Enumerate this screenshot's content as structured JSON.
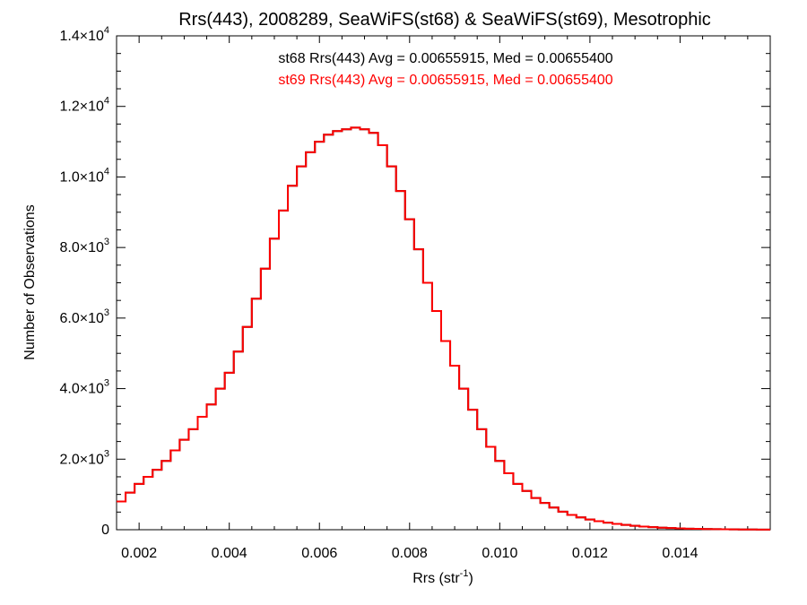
{
  "chart_data": {
    "type": "histogram",
    "title": "Rrs(443), 2008289, SeaWiFS(st68) & SeaWiFS(st69), Mesotrophic",
    "xlabel": "Rrs (str",
    "xlabel_sup": "-1",
    "xlabel_tail": ")",
    "ylabel": "Number of Observations",
    "xlim": [
      0.0015,
      0.016
    ],
    "ylim": [
      0,
      14000
    ],
    "x_ticks": [
      0.002,
      0.004,
      0.006,
      0.008,
      0.01,
      0.012,
      0.014
    ],
    "x_tick_labels": [
      "0.002",
      "0.004",
      "0.006",
      "0.008",
      "0.010",
      "0.012",
      "0.014"
    ],
    "y_ticks": [
      {
        "value": 0,
        "mant": "0",
        "exp": ""
      },
      {
        "value": 2000,
        "mant": "2.0×10",
        "exp": "3"
      },
      {
        "value": 4000,
        "mant": "4.0×10",
        "exp": "3"
      },
      {
        "value": 6000,
        "mant": "6.0×10",
        "exp": "3"
      },
      {
        "value": 8000,
        "mant": "8.0×10",
        "exp": "3"
      },
      {
        "value": 10000,
        "mant": "1.0×10",
        "exp": "4"
      },
      {
        "value": 12000,
        "mant": "1.2×10",
        "exp": "4"
      },
      {
        "value": 14000,
        "mant": "1.4×10",
        "exp": "4"
      }
    ],
    "stats": [
      {
        "text": "st68 Rrs(443) Avg = 0.00655915, Med = 0.00655400",
        "color": "#000000"
      },
      {
        "text": "st69 Rrs(443) Avg = 0.00655915, Med = 0.00655400",
        "color": "#ff0000"
      }
    ],
    "series": [
      {
        "name": "st68",
        "color": "#000000",
        "points": [
          [
            0.0015,
            800
          ],
          [
            0.0017,
            1050
          ],
          [
            0.0019,
            1300
          ],
          [
            0.0021,
            1500
          ],
          [
            0.0023,
            1700
          ],
          [
            0.0025,
            1950
          ],
          [
            0.0027,
            2250
          ],
          [
            0.0029,
            2550
          ],
          [
            0.0031,
            2850
          ],
          [
            0.0033,
            3200
          ],
          [
            0.0035,
            3550
          ],
          [
            0.0037,
            4000
          ],
          [
            0.0039,
            4450
          ],
          [
            0.0041,
            5050
          ],
          [
            0.0043,
            5750
          ],
          [
            0.0045,
            6550
          ],
          [
            0.0047,
            7400
          ],
          [
            0.0049,
            8250
          ],
          [
            0.0051,
            9050
          ],
          [
            0.0053,
            9750
          ],
          [
            0.0055,
            10300
          ],
          [
            0.0057,
            10700
          ],
          [
            0.0059,
            11000
          ],
          [
            0.0061,
            11200
          ],
          [
            0.0063,
            11300
          ],
          [
            0.0065,
            11350
          ],
          [
            0.0067,
            11400
          ],
          [
            0.0069,
            11350
          ],
          [
            0.0071,
            11250
          ],
          [
            0.0073,
            10900
          ],
          [
            0.0075,
            10300
          ],
          [
            0.0077,
            9600
          ],
          [
            0.0079,
            8800
          ],
          [
            0.0081,
            7950
          ],
          [
            0.0083,
            7000
          ],
          [
            0.0085,
            6200
          ],
          [
            0.0087,
            5350
          ],
          [
            0.0089,
            4650
          ],
          [
            0.0091,
            4000
          ],
          [
            0.0093,
            3400
          ],
          [
            0.0095,
            2850
          ],
          [
            0.0097,
            2350
          ],
          [
            0.0099,
            1950
          ],
          [
            0.0101,
            1600
          ],
          [
            0.0103,
            1300
          ],
          [
            0.0105,
            1100
          ],
          [
            0.0107,
            900
          ],
          [
            0.0109,
            760
          ],
          [
            0.0111,
            630
          ],
          [
            0.0113,
            510
          ],
          [
            0.0115,
            420
          ],
          [
            0.0117,
            350
          ],
          [
            0.0119,
            290
          ],
          [
            0.0121,
            240
          ],
          [
            0.0123,
            200
          ],
          [
            0.0125,
            165
          ],
          [
            0.0127,
            135
          ],
          [
            0.0129,
            110
          ],
          [
            0.0131,
            90
          ],
          [
            0.0133,
            72
          ],
          [
            0.0135,
            58
          ],
          [
            0.0137,
            47
          ],
          [
            0.0139,
            38
          ],
          [
            0.0141,
            30
          ],
          [
            0.0143,
            24
          ],
          [
            0.0145,
            19
          ],
          [
            0.0147,
            15
          ],
          [
            0.0149,
            12
          ],
          [
            0.0151,
            9
          ],
          [
            0.0153,
            7
          ],
          [
            0.0155,
            5
          ],
          [
            0.0157,
            4
          ],
          [
            0.0159,
            3
          ]
        ]
      },
      {
        "name": "st69",
        "color": "#ff0000",
        "points": [
          [
            0.0015,
            800
          ],
          [
            0.0017,
            1050
          ],
          [
            0.0019,
            1300
          ],
          [
            0.0021,
            1500
          ],
          [
            0.0023,
            1700
          ],
          [
            0.0025,
            1950
          ],
          [
            0.0027,
            2250
          ],
          [
            0.0029,
            2550
          ],
          [
            0.0031,
            2850
          ],
          [
            0.0033,
            3200
          ],
          [
            0.0035,
            3550
          ],
          [
            0.0037,
            4000
          ],
          [
            0.0039,
            4450
          ],
          [
            0.0041,
            5050
          ],
          [
            0.0043,
            5750
          ],
          [
            0.0045,
            6550
          ],
          [
            0.0047,
            7400
          ],
          [
            0.0049,
            8250
          ],
          [
            0.0051,
            9050
          ],
          [
            0.0053,
            9750
          ],
          [
            0.0055,
            10300
          ],
          [
            0.0057,
            10700
          ],
          [
            0.0059,
            11000
          ],
          [
            0.0061,
            11200
          ],
          [
            0.0063,
            11300
          ],
          [
            0.0065,
            11350
          ],
          [
            0.0067,
            11400
          ],
          [
            0.0069,
            11350
          ],
          [
            0.0071,
            11250
          ],
          [
            0.0073,
            10900
          ],
          [
            0.0075,
            10300
          ],
          [
            0.0077,
            9600
          ],
          [
            0.0079,
            8800
          ],
          [
            0.0081,
            7950
          ],
          [
            0.0083,
            7000
          ],
          [
            0.0085,
            6200
          ],
          [
            0.0087,
            5350
          ],
          [
            0.0089,
            4650
          ],
          [
            0.0091,
            4000
          ],
          [
            0.0093,
            3400
          ],
          [
            0.0095,
            2850
          ],
          [
            0.0097,
            2350
          ],
          [
            0.0099,
            1950
          ],
          [
            0.0101,
            1600
          ],
          [
            0.0103,
            1300
          ],
          [
            0.0105,
            1100
          ],
          [
            0.0107,
            900
          ],
          [
            0.0109,
            760
          ],
          [
            0.0111,
            630
          ],
          [
            0.0113,
            510
          ],
          [
            0.0115,
            420
          ],
          [
            0.0117,
            350
          ],
          [
            0.0119,
            290
          ],
          [
            0.0121,
            240
          ],
          [
            0.0123,
            200
          ],
          [
            0.0125,
            165
          ],
          [
            0.0127,
            135
          ],
          [
            0.0129,
            110
          ],
          [
            0.0131,
            90
          ],
          [
            0.0133,
            72
          ],
          [
            0.0135,
            58
          ],
          [
            0.0137,
            47
          ],
          [
            0.0139,
            38
          ],
          [
            0.0141,
            30
          ],
          [
            0.0143,
            24
          ],
          [
            0.0145,
            19
          ],
          [
            0.0147,
            15
          ],
          [
            0.0149,
            12
          ],
          [
            0.0151,
            9
          ],
          [
            0.0153,
            7
          ],
          [
            0.0155,
            5
          ],
          [
            0.0157,
            4
          ],
          [
            0.0159,
            3
          ]
        ]
      }
    ]
  }
}
